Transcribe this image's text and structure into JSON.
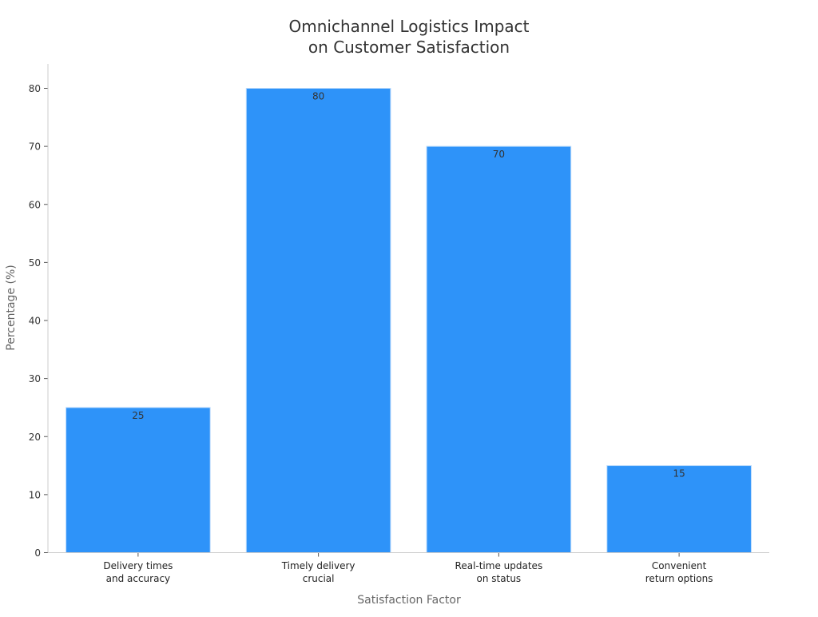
{
  "chart_data": {
    "type": "bar",
    "title": [
      "Omnichannel Logistics Impact",
      "on Customer Satisfaction"
    ],
    "xlabel": "Satisfaction Factor",
    "ylabel": "Percentage (%)",
    "categories": [
      [
        "Delivery times",
        "and accuracy"
      ],
      [
        "Timely delivery",
        "crucial"
      ],
      [
        "Real-time updates",
        "on status"
      ],
      [
        "Convenient",
        "return options"
      ]
    ],
    "values": [
      25,
      80,
      70,
      15
    ],
    "ylim": [
      0,
      84
    ],
    "yticks": [
      0,
      10,
      20,
      30,
      40,
      50,
      60,
      70,
      80
    ],
    "grid": false,
    "bar_color": "#2e93f9",
    "data_labels": true
  }
}
